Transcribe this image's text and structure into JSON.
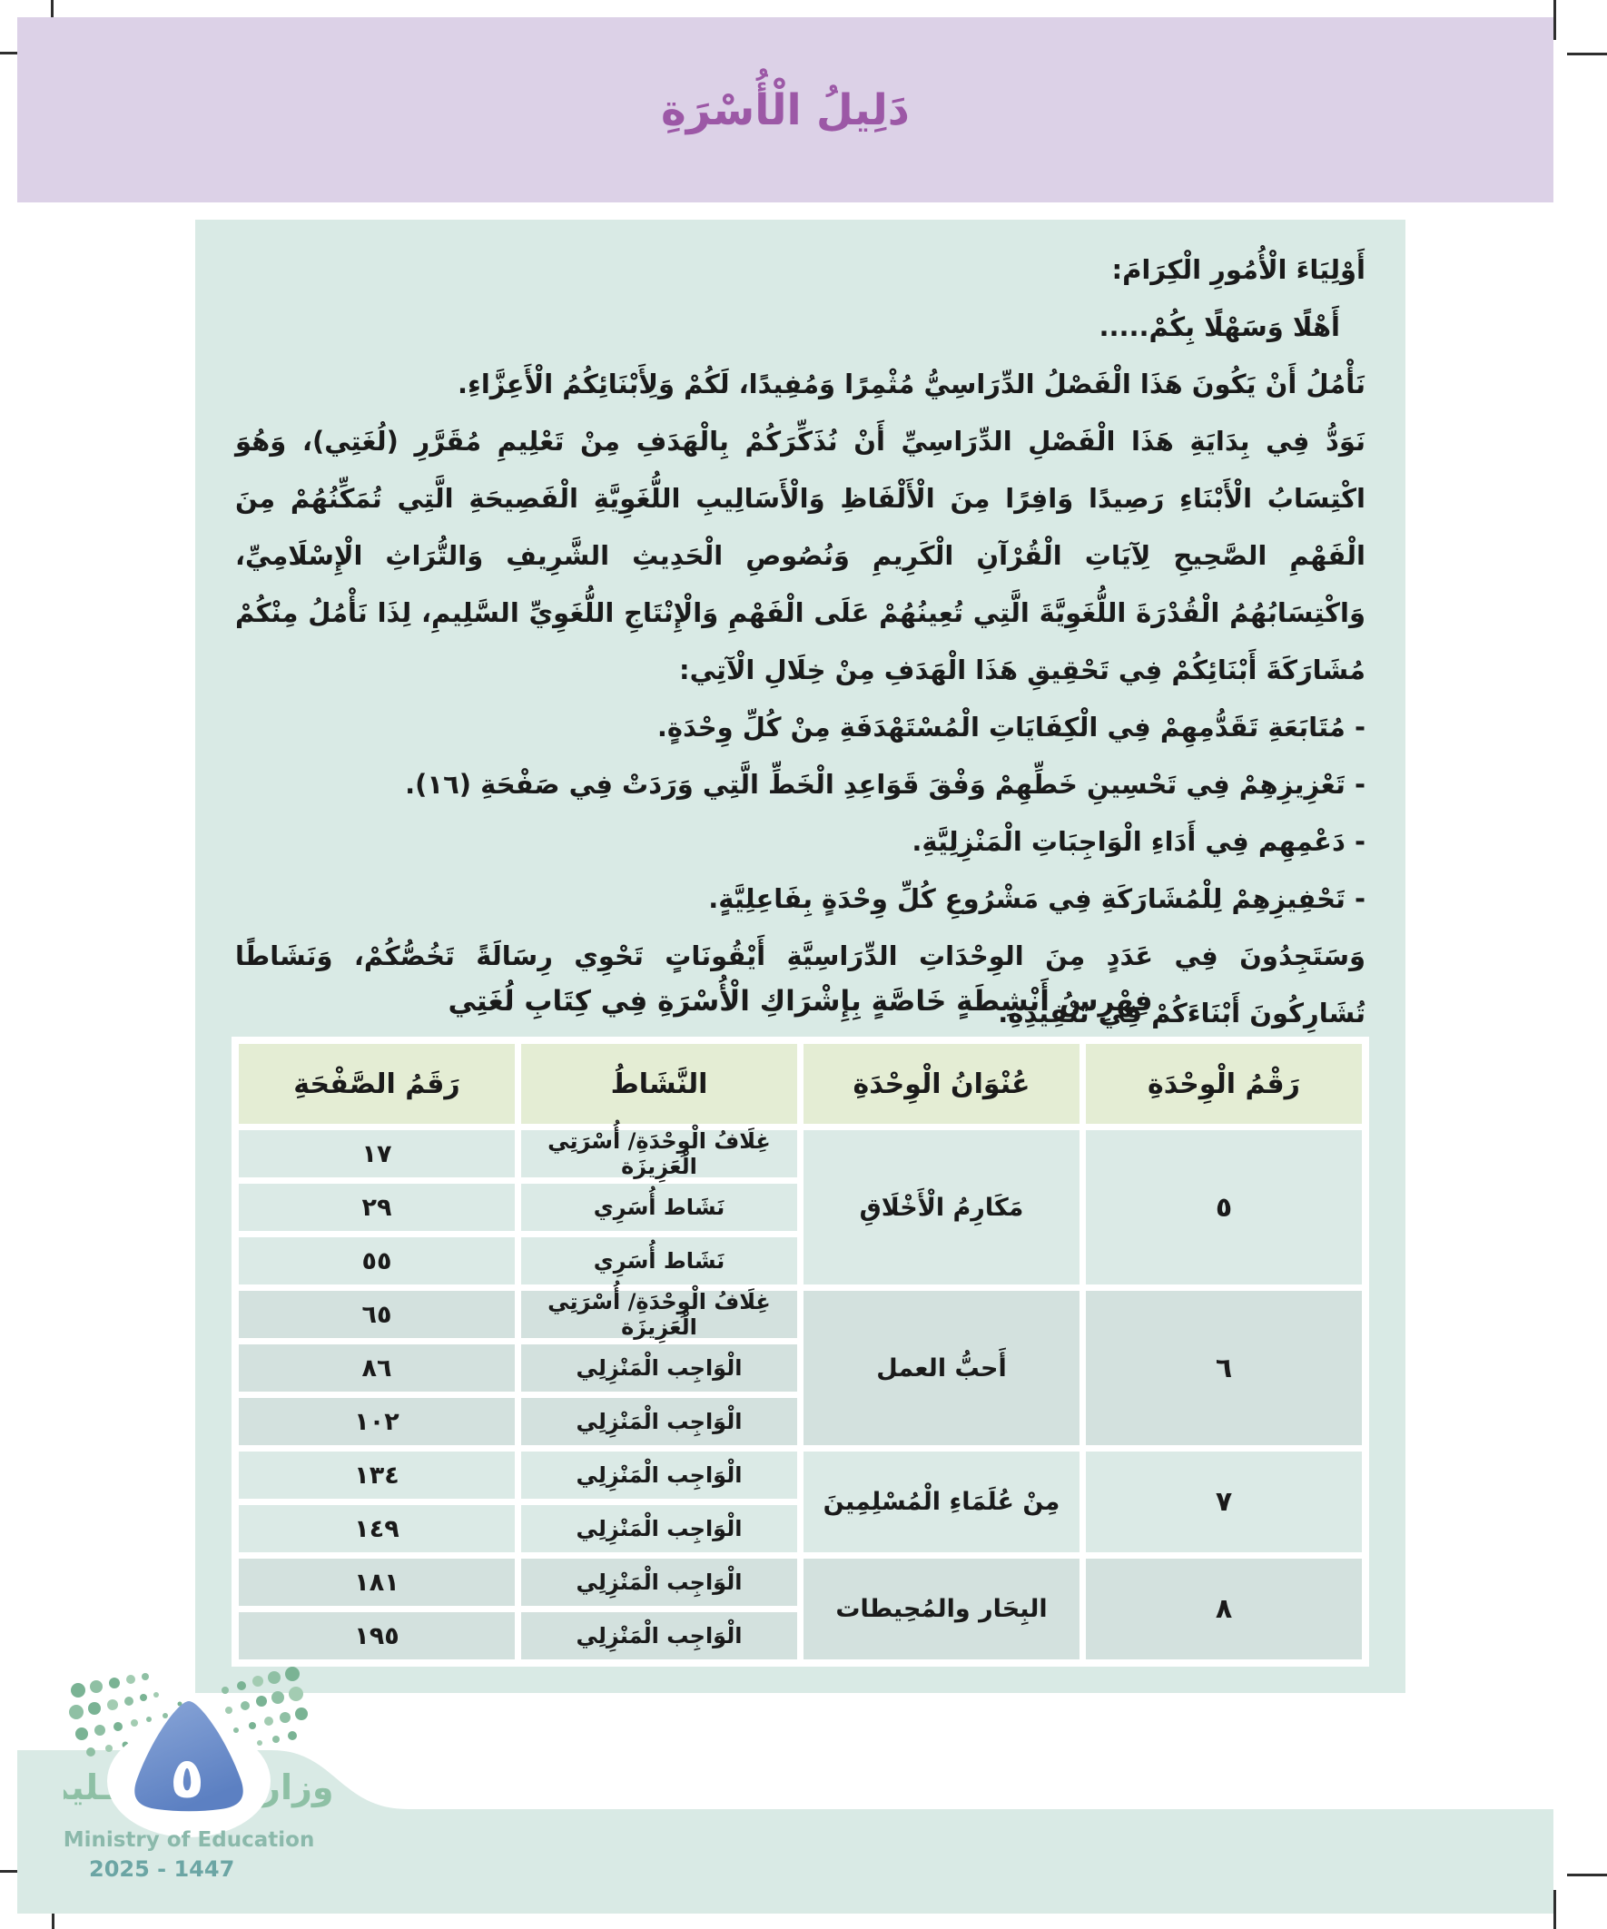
{
  "header": {
    "title": "دَلِيلُ الْأُسْرَةِ"
  },
  "colors": {
    "band_lavender": "#dcd1e7",
    "title_purple": "#9c58a6",
    "panel_mint": "#d9eae5",
    "table_header_green": "#e4edd4",
    "cell_light": "#dbeae6",
    "cell_dark": "#d3e1de",
    "logo_blue": "#6b8fcb",
    "logo_green": "#8ec0a5"
  },
  "intro": {
    "lines": [
      {
        "type": "salutation",
        "text": "أَوْلِيَاءَ الْأُمُورِ الْكِرَامَ:"
      },
      {
        "type": "welcome",
        "text": "أَهْلًا وَسَهْلًا بِكُمْ....."
      },
      {
        "type": "body",
        "text": "نَأْمُلُ أَنْ يَكُونَ هَذَا الْفَصْلُ الدِّرَاسِيُّ مُثْمِرًا وَمُفِيدًا، لَكُمْ وَلِأَبْنَائِكُمُ الْأَعِزَّاءِ."
      },
      {
        "type": "paragraph",
        "text": "نَوَدُّ فِي بِدَايَةِ هَذَا الْفَصْلِ الدِّرَاسِيِّ أَنْ نُذَكِّرَكُمْ بِالْهَدَفِ مِنْ تَعْلِيمِ مُقَرَّرِ (لُغَتِي)، وَهُوَ اكْتِسَابُ الْأَبْنَاءِ رَصِيدًا وَافِرًا مِنَ الْأَلْفَاظِ وَالْأَسَالِيبِ اللُّغَوِيَّةِ الْفَصِيحَةِ الَّتِي تُمَكِّنُهُمْ مِنَ الْفَهْمِ الصَّحِيحِ لِآيَاتِ الْقُرْآنِ الْكَرِيمِ وَنُصُوصِ الْحَدِيثِ الشَّرِيفِ وَالتُّرَاثِ الْإِسْلَامِيِّ، وَاكْتِسَابُهُمُ الْقُدْرَةَ اللُّغَوِيَّةَ الَّتِي تُعِينُهُمْ عَلَى الْفَهْمِ وَالْإِنْتَاجِ اللُّغَوِيِّ السَّلِيمِ، لِذَا نَأْمُلُ مِنْكُمْ مُشَارَكَةَ أَبْنَائِكُمْ فِي تَحْقِيقِ هَذَا الْهَدَفِ مِنْ خِلَالِ الْآتِي:"
      },
      {
        "type": "bullet",
        "text": "- مُتَابَعَةِ تَقَدُّمِهِمْ فِي الْكِفَايَاتِ الْمُسْتَهْدَفَةِ مِنْ كُلِّ وِحْدَةٍ."
      },
      {
        "type": "bullet",
        "text": "- تَعْزِيزِهِمْ فِي تَحْسِينِ خَطِّهِمْ وَفْقَ قَوَاعِدِ الْخَطِّ الَّتِي وَرَدَتْ فِي صَفْحَةِ (١٦)."
      },
      {
        "type": "bullet",
        "text": "- دَعْمِهِم فِي أَدَاءِ الْوَاجِبَاتِ الْمَنْزِلِيَّةِ."
      },
      {
        "type": "bullet",
        "text": "- تَحْفِيزِهِمْ لِلْمُشَارَكَةِ فِي مَشْرُوعِ كُلِّ وِحْدَةٍ بِفَاعِلِيَّةٍ."
      },
      {
        "type": "paragraph",
        "text": "وَسَتَجِدُونَ فِي عَدَدٍ مِنَ الوِحْدَاتِ الدِّرَاسِيَّةِ أَيْقُونَاتٍ تَحْوِي رِسَالَةً تَخُصُّكُمْ، وَنَشَاطًا تُشَارِكُونَ أَبْنَاءَكُمْ فِي تَنْفِيذِهِ."
      }
    ]
  },
  "table_section": {
    "heading": "فِهْرِسُ أَنْشِطَةٍ خَاصَّةٍ بِإِشْرَاكِ الْأُسْرَةِ فِي كِتَابِ لُغَتِي",
    "headers": [
      "رَقْمُ الْوِحْدَةِ",
      "عُنْوَانُ الْوِحْدَةِ",
      "النَّشَاطُ",
      "رَقَمُ الصَّفْحَةِ"
    ],
    "groups": [
      {
        "unit_number": "٥",
        "unit_title": "مَكَارِمُ الْأَخْلَاقِ",
        "rows": [
          {
            "activity": "غِلَافُ الْوِحْدَةِ/ أُسْرَتِي الْعَزِيزَة",
            "page": "١٧"
          },
          {
            "activity": "نَشَاط أُسَرِي",
            "page": "٢٩"
          },
          {
            "activity": "نَشَاط أُسَرِي",
            "page": "٥٥"
          }
        ]
      },
      {
        "unit_number": "٦",
        "unit_title": "أَحبُّ العمل",
        "rows": [
          {
            "activity": "غِلَافُ الْوِحْدَةِ/ أُسْرَتِي الْعَزِيزَة",
            "page": "٦٥"
          },
          {
            "activity": "الْوَاجِب الْمَنْزِلِي",
            "page": "٨٦"
          },
          {
            "activity": "الْوَاجِب الْمَنْزِلِي",
            "page": "١٠٢"
          }
        ]
      },
      {
        "unit_number": "٧",
        "unit_title": "مِنْ عُلَمَاءِ الْمُسْلِمِينَ",
        "rows": [
          {
            "activity": "الْوَاجِب الْمَنْزِلِي",
            "page": "١٣٤"
          },
          {
            "activity": "الْوَاجِب الْمَنْزِلِي",
            "page": "١٤٩"
          }
        ]
      },
      {
        "unit_number": "٨",
        "unit_title": "البِحَار والمُحِيطات",
        "rows": [
          {
            "activity": "الْوَاجِب الْمَنْزِلِي",
            "page": "١٨١"
          },
          {
            "activity": "الْوَاجِب الْمَنْزِلِي",
            "page": "١٩٥"
          }
        ]
      }
    ]
  },
  "footer": {
    "page_number": "٥",
    "ministry_ar": "وزارة التـــعـــليم",
    "ministry_en": "Ministry of Education",
    "years": "2025 - 1447"
  }
}
